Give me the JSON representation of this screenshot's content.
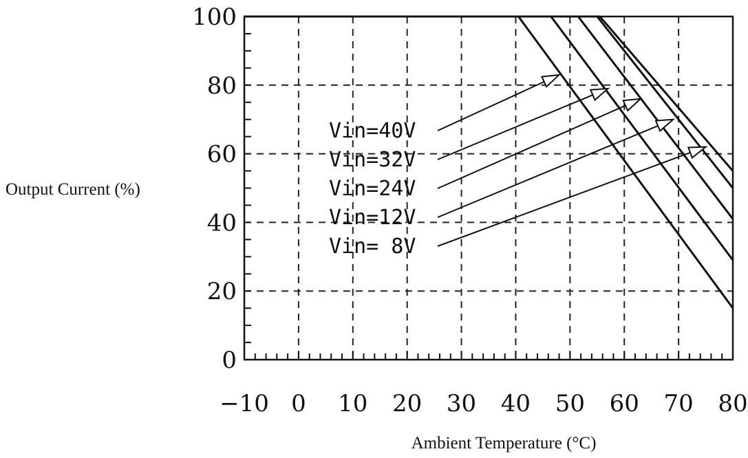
{
  "chart_data": {
    "type": "line",
    "title": "",
    "xlabel": "Ambient Temperature (°C)",
    "ylabel": "Output Current (%)",
    "xlim": [
      -10,
      80
    ],
    "ylim": [
      0,
      100
    ],
    "x_ticks": [
      "−10",
      "0",
      "10",
      "20",
      "30",
      "40",
      "50",
      "60",
      "70",
      "80"
    ],
    "y_ticks": [
      "0",
      "20",
      "40",
      "60",
      "80",
      "100"
    ],
    "grid": true,
    "series": [
      {
        "name": "Vin=40V",
        "x": [
          -10,
          40.5,
          80
        ],
        "y": [
          100,
          100,
          15
        ]
      },
      {
        "name": "Vin=32V",
        "x": [
          -10,
          46.5,
          80
        ],
        "y": [
          100,
          100,
          29
        ]
      },
      {
        "name": "Vin=24V",
        "x": [
          -10,
          51.5,
          80
        ],
        "y": [
          100,
          100,
          41
        ]
      },
      {
        "name": "Vin=12V",
        "x": [
          -10,
          55,
          80
        ],
        "y": [
          100,
          100,
          50
        ]
      },
      {
        "name": "Vin= 8V",
        "x": [
          -10,
          55.5,
          80
        ],
        "y": [
          100,
          100,
          55
        ]
      }
    ],
    "annotations": [
      {
        "text": "Vin=40V",
        "arrow_to": [
          48,
          83
        ]
      },
      {
        "text": "Vin=32V",
        "arrow_to": [
          57,
          79
        ]
      },
      {
        "text": "Vin=24V",
        "arrow_to": [
          63,
          76
        ]
      },
      {
        "text": "Vin=12V",
        "arrow_to": [
          69,
          70
        ]
      },
      {
        "text": "Vin= 8V",
        "arrow_to": [
          75,
          62
        ]
      }
    ]
  }
}
